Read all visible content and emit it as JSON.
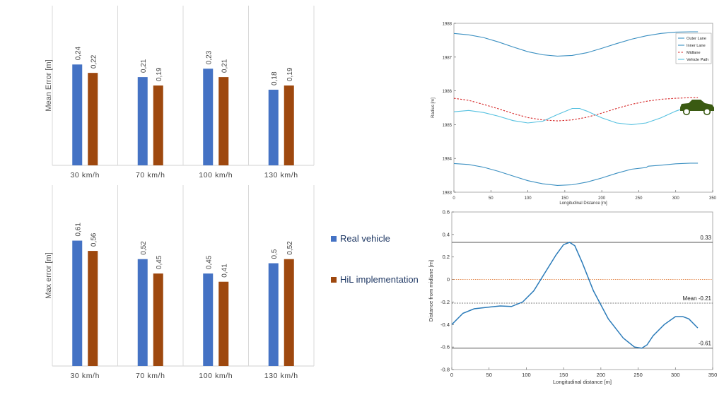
{
  "colors": {
    "real": "#4472c4",
    "hil": "#9e480e",
    "lane": "#3a8fc1",
    "path": "#56c1e0",
    "mid": "#d62728",
    "dev": "#2b7bb9",
    "car": "#3a5a12"
  },
  "legend": {
    "real_label": "Real vehicle",
    "hil_label": "HiL implementation"
  },
  "chart_data": [
    {
      "type": "bar",
      "ylabel": "Mean Error [m]",
      "categories": [
        "30 km/h",
        "70 km/h",
        "100 km/h",
        "130 km/h"
      ],
      "series": [
        {
          "name": "Real vehicle",
          "values": [
            0.24,
            0.21,
            0.23,
            0.18
          ],
          "labels": [
            "0,24",
            "0,21",
            "0,23",
            "0,18"
          ]
        },
        {
          "name": "HiL implementation",
          "values": [
            0.22,
            0.19,
            0.21,
            0.19
          ],
          "labels": [
            "0,22",
            "0,19",
            "0,21",
            "0,19"
          ]
        }
      ],
      "ylim": [
        0,
        0.38
      ]
    },
    {
      "type": "bar",
      "ylabel": "Max error [m]",
      "categories": [
        "30 km/h",
        "70 km/h",
        "100 km/h",
        "130 km/h"
      ],
      "series": [
        {
          "name": "Real vehicle",
          "values": [
            0.61,
            0.52,
            0.45,
            0.5
          ],
          "labels": [
            "0,61",
            "0,52",
            "0,45",
            "0,5"
          ]
        },
        {
          "name": "HiL implementation",
          "values": [
            0.56,
            0.45,
            0.41,
            0.52
          ],
          "labels": [
            "0,56",
            "0,45",
            "0,41",
            "0,52"
          ]
        }
      ],
      "ylim": [
        0,
        0.88
      ]
    },
    {
      "type": "line",
      "xlabel": "Longitudinal Distance [m]",
      "ylabel": "Radius [m]",
      "xlim": [
        0,
        350
      ],
      "ylim": [
        1983,
        1988
      ],
      "xticks": [
        0,
        50,
        100,
        150,
        200,
        250,
        300,
        350
      ],
      "yticks": [
        1983,
        1984,
        1985,
        1986,
        1987,
        1988
      ],
      "legend_position": "top-right",
      "series": [
        {
          "name": "Outer Lane",
          "x": [
            0,
            20,
            40,
            60,
            80,
            100,
            120,
            140,
            160,
            180,
            200,
            220,
            240,
            260,
            280,
            300,
            320,
            330
          ],
          "y": [
            1987.7,
            1987.66,
            1987.58,
            1987.45,
            1987.3,
            1987.16,
            1987.07,
            1987.03,
            1987.05,
            1987.13,
            1987.26,
            1987.4,
            1987.53,
            1987.63,
            1987.7,
            1987.74,
            1987.75,
            1987.75
          ]
        },
        {
          "name": "Inner Lane",
          "x": [
            0,
            20,
            40,
            60,
            80,
            100,
            120,
            140,
            160,
            180,
            200,
            220,
            240,
            260,
            263,
            280,
            300,
            320,
            330
          ],
          "y": [
            1983.85,
            1983.82,
            1983.74,
            1983.62,
            1983.48,
            1983.34,
            1983.25,
            1983.2,
            1983.22,
            1983.3,
            1983.42,
            1983.56,
            1983.68,
            1983.73,
            1983.77,
            1983.8,
            1983.84,
            1983.86,
            1983.86
          ]
        },
        {
          "name": "Midlane",
          "x": [
            0,
            20,
            40,
            60,
            80,
            100,
            120,
            140,
            160,
            180,
            200,
            220,
            240,
            260,
            280,
            300,
            320,
            330
          ],
          "y": [
            1985.78,
            1985.72,
            1985.6,
            1985.47,
            1985.33,
            1985.21,
            1985.14,
            1985.11,
            1985.14,
            1985.22,
            1985.34,
            1985.48,
            1985.6,
            1985.69,
            1985.75,
            1985.78,
            1985.8,
            1985.8
          ]
        },
        {
          "name": "Vehicle Path",
          "x": [
            0,
            20,
            40,
            60,
            80,
            100,
            120,
            140,
            160,
            170,
            180,
            200,
            220,
            240,
            260,
            280,
            300,
            320,
            330
          ],
          "y": [
            1985.38,
            1985.42,
            1985.36,
            1985.25,
            1985.12,
            1985.05,
            1985.1,
            1985.3,
            1985.48,
            1985.48,
            1985.4,
            1985.2,
            1985.05,
            1985.0,
            1985.05,
            1985.2,
            1985.4,
            1985.55,
            1985.58
          ]
        }
      ]
    },
    {
      "type": "line",
      "xlabel": "Longitudinal distance [m]",
      "ylabel": "Distance from midlane [m]",
      "xlim": [
        0,
        350
      ],
      "ylim": [
        -0.8,
        0.6
      ],
      "xticks": [
        0,
        50,
        100,
        150,
        200,
        250,
        300,
        350
      ],
      "yticks": [
        -0.8,
        -0.6,
        -0.4,
        -0.2,
        0,
        0.2,
        0.4,
        0.6
      ],
      "reference_lines": [
        {
          "value": 0.33,
          "label": "0.33"
        },
        {
          "value": -0.21,
          "label": "Mean -0.21"
        },
        {
          "value": -0.61,
          "label": "-0.61"
        }
      ],
      "series": [
        {
          "x": [
            0,
            15,
            30,
            50,
            65,
            80,
            95,
            110,
            125,
            140,
            150,
            158,
            165,
            175,
            190,
            210,
            230,
            245,
            255,
            262,
            270,
            285,
            300,
            310,
            318,
            330
          ],
          "y": [
            -0.4,
            -0.3,
            -0.26,
            -0.245,
            -0.235,
            -0.24,
            -0.2,
            -0.1,
            0.06,
            0.22,
            0.31,
            0.33,
            0.3,
            0.15,
            -0.1,
            -0.35,
            -0.52,
            -0.6,
            -0.61,
            -0.58,
            -0.5,
            -0.4,
            -0.33,
            -0.33,
            -0.35,
            -0.43
          ]
        }
      ]
    }
  ]
}
